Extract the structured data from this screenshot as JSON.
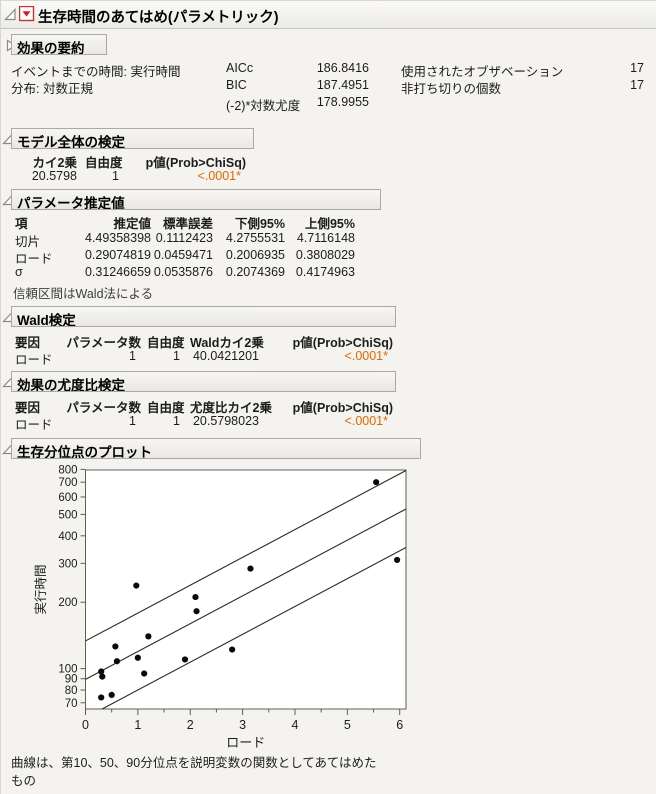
{
  "colors": {
    "significant_p": "#E06A00",
    "plot_bg": "#FFFFFF",
    "frame": "#5F5D58"
  },
  "icons": {
    "report_disclosure_open": "open-triangle",
    "section_disclosure_open": "open-triangle",
    "section_disclosure_collapsed": "right-triangle",
    "red_triangle_menu": "red-triangle-menu"
  },
  "window": {
    "title": "生存時間のあてはめ(パラメトリック)"
  },
  "effect_summary": {
    "title": "効果の要約"
  },
  "fit_summary": {
    "left": [
      {
        "label": "イベントまでの時間: 実行時間"
      },
      {
        "label": "分布: 対数正規"
      }
    ],
    "middle": [
      {
        "label": "AICc",
        "value": "186.8416"
      },
      {
        "label": "BIC",
        "value": "187.4951"
      },
      {
        "label": "(-2)*対数尤度",
        "value": "178.9955"
      }
    ],
    "right": [
      {
        "label": "使用されたオブザベーション",
        "value": "17"
      },
      {
        "label": "非打ち切りの個数",
        "value": "17"
      }
    ]
  },
  "tables": {
    "whole_model": {
      "title": "モデル全体の検定",
      "headers": [
        "カイ2乗",
        "自由度",
        "p値(Prob>ChiSq)"
      ],
      "rows": [
        [
          "20.5798",
          "1",
          "<.0001*"
        ]
      ]
    },
    "param": {
      "title": "パラメータ推定値",
      "headers": [
        "項",
        "推定値",
        "標準誤差",
        "下側95%",
        "上側95%"
      ],
      "rows": [
        [
          "切片",
          "4.49358398",
          "0.1112423",
          "4.2755531",
          "4.7116148"
        ],
        [
          "ロード",
          "0.29074819",
          "0.0459471",
          "0.2006935",
          "0.3808029"
        ],
        [
          "σ",
          "0.31246659",
          "0.0535876",
          "0.2074369",
          "0.4174963"
        ]
      ],
      "note": "信頼区間はWald法による"
    },
    "wald": {
      "title": "Wald検定",
      "headers": [
        "要因",
        "パラメータ数",
        "自由度",
        "Waldカイ2乗",
        "p値(Prob>ChiSq)"
      ],
      "rows": [
        [
          "ロード",
          "1",
          "1",
          "40.0421201",
          "<.0001*"
        ]
      ]
    },
    "lr": {
      "title": "効果の尤度比検定",
      "headers": [
        "要因",
        "パラメータ数",
        "自由度",
        "尤度比カイ2乗",
        "p値(Prob>ChiSq)"
      ],
      "rows": [
        [
          "ロード",
          "1",
          "1",
          "20.5798023",
          "<.0001*"
        ]
      ]
    }
  },
  "plot_section": {
    "title": "生存分位点のプロット",
    "footnote_line1": "曲線は、第10、50、90分位点を説明変数の関数としてあてはめた",
    "footnote_line2": "もの"
  },
  "chart_data": {
    "type": "scatter",
    "title": "生存分位点のプロット",
    "xlabel": "ロード",
    "ylabel": "実行時間",
    "xlim": [
      0,
      6.12
    ],
    "ylim": [
      65.6,
      795
    ],
    "y_scale": "log",
    "x_major_ticks": [
      0,
      1,
      2,
      3,
      4,
      5,
      6
    ],
    "x_minor_ticks": [
      0.5,
      1.5,
      2.5,
      3.5,
      4.5,
      5.5
    ],
    "y_ticks": [
      70,
      80,
      90,
      100,
      200,
      300,
      400,
      500,
      600,
      700,
      800
    ],
    "grid": false,
    "legend": "none",
    "points": [
      [
        0.3,
        97
      ],
      [
        0.32,
        92
      ],
      [
        0.3,
        74
      ],
      [
        0.5,
        76
      ],
      [
        0.57,
        126
      ],
      [
        0.6,
        108
      ],
      [
        0.97,
        238
      ],
      [
        1.0,
        112
      ],
      [
        1.12,
        95
      ],
      [
        1.2,
        140
      ],
      [
        1.9,
        110
      ],
      [
        2.1,
        211
      ],
      [
        2.12,
        182
      ],
      [
        2.8,
        122
      ],
      [
        3.15,
        284
      ],
      [
        5.55,
        700
      ],
      [
        5.95,
        311
      ]
    ],
    "quantile_lines": [
      {
        "name": "quantile-10",
        "points": [
          [
            0.317,
            65.6
          ],
          [
            6.12,
            354
          ]
        ]
      },
      {
        "name": "quantile-50",
        "points": [
          [
            0.0,
            89.4
          ],
          [
            6.12,
            529
          ]
        ]
      },
      {
        "name": "quantile-90",
        "points": [
          [
            0.0,
            133.5
          ],
          [
            6.12,
            791
          ]
        ]
      }
    ]
  }
}
